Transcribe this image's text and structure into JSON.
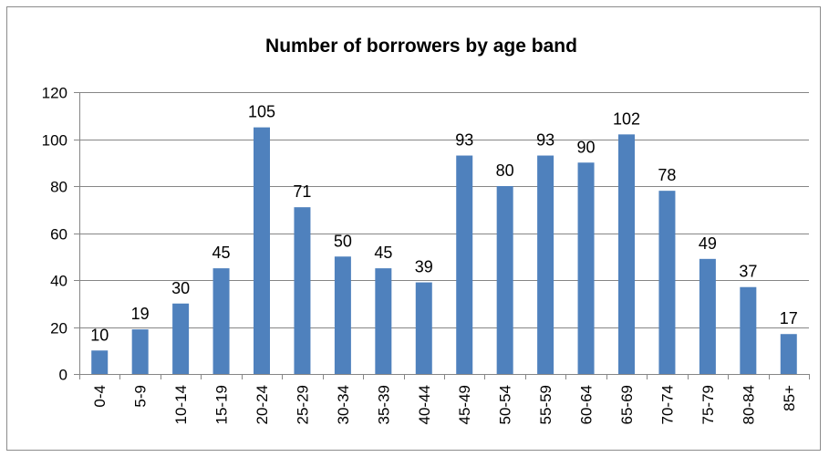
{
  "chart_data": {
    "type": "bar",
    "title": "Number of borrowers by age band",
    "xlabel": "",
    "ylabel": "",
    "categories": [
      "0-4",
      "5-9",
      "10-14",
      "15-19",
      "20-24",
      "25-29",
      "30-34",
      "35-39",
      "40-44",
      "45-49",
      "50-54",
      "55-59",
      "60-64",
      "65-69",
      "70-74",
      "75-79",
      "80-84",
      "85+"
    ],
    "values": [
      10,
      19,
      30,
      45,
      105,
      71,
      50,
      45,
      39,
      93,
      80,
      93,
      90,
      102,
      78,
      49,
      37,
      17
    ],
    "data_labels": [
      "10",
      "19",
      "30",
      "45",
      "105",
      "71",
      "50",
      "45",
      "39",
      "93",
      "80",
      "93",
      "90",
      "102",
      "78",
      "49",
      "37",
      "17"
    ],
    "ylim": [
      0,
      120
    ],
    "yticks": [
      0,
      20,
      40,
      60,
      80,
      100,
      120
    ],
    "ytick_labels": [
      "0",
      "20",
      "40",
      "60",
      "80",
      "100",
      "120"
    ],
    "grid": true,
    "legend": "none",
    "bar_color": "#4f81bd",
    "grid_color": "#868686"
  }
}
